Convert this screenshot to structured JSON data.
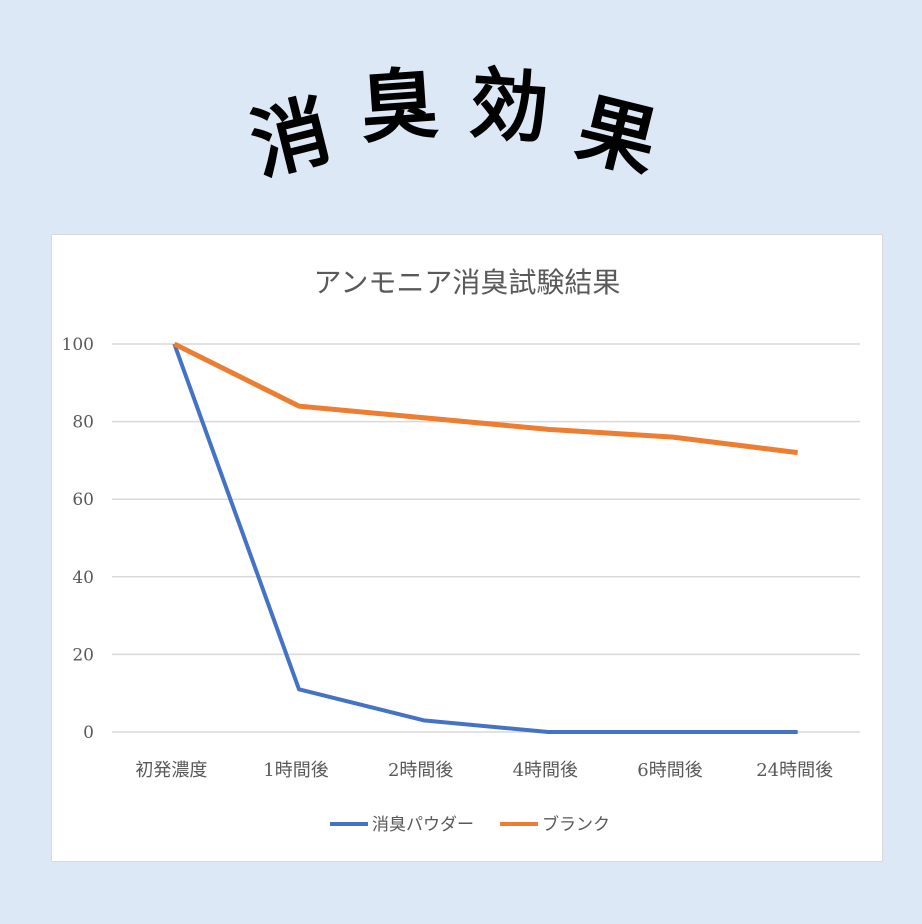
{
  "banner": {
    "title_chars": [
      "消",
      "臭",
      "効",
      "果"
    ]
  },
  "chart_data": {
    "type": "line",
    "title": "アンモニア消臭試験結果",
    "categories": [
      "初発濃度",
      "1時間後",
      "2時間後",
      "4時間後",
      "6時間後",
      "24時間後"
    ],
    "ylim": [
      0,
      100
    ],
    "yticks": [
      "0",
      "20",
      "40",
      "60",
      "80",
      "100"
    ],
    "grid": true,
    "legend_position": "bottom",
    "series": [
      {
        "name": "消臭パウダー",
        "color": "#4472c4",
        "values": [
          100,
          11,
          3,
          0,
          0,
          0
        ]
      },
      {
        "name": "ブランク",
        "color": "#ed7d31",
        "values": [
          100,
          84,
          81,
          78,
          76,
          72
        ]
      }
    ]
  }
}
